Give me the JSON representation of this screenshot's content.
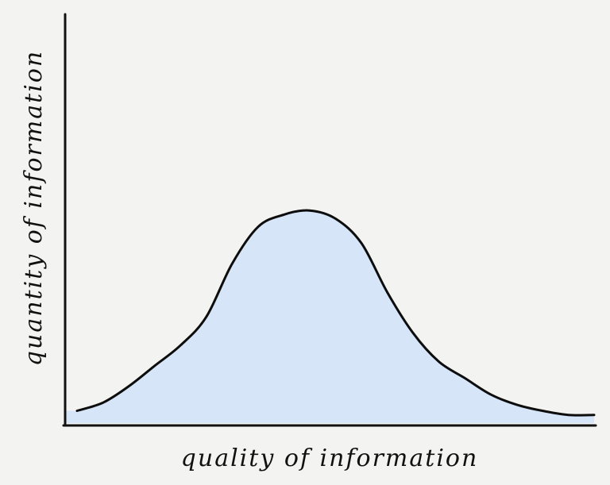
{
  "chart_data": {
    "type": "area",
    "title": "",
    "xlabel": "quality of information",
    "ylabel": "quantity of information",
    "xlim": [
      0,
      10
    ],
    "ylim": [
      0,
      10
    ],
    "grid": false,
    "legend": "none",
    "series": [
      {
        "x": [
          0,
          0.5,
          1,
          1.5,
          2,
          2.5,
          3,
          3.5,
          4,
          4.5,
          5,
          5.5,
          6,
          6.5,
          7,
          7.5,
          8,
          8.5,
          9,
          9.5,
          10
        ],
        "values": [
          0.3,
          0.5,
          0.9,
          1.4,
          1.9,
          2.6,
          3.9,
          4.8,
          5.1,
          5.2,
          5.0,
          4.4,
          3.2,
          2.2,
          1.5,
          1.1,
          0.7,
          0.45,
          0.3,
          0.2,
          0.2
        ]
      }
    ]
  },
  "colors": {
    "background": "#f3f3f2",
    "fill": "#d6e6f8",
    "line": "#0d0d0d",
    "axis": "#111111"
  }
}
